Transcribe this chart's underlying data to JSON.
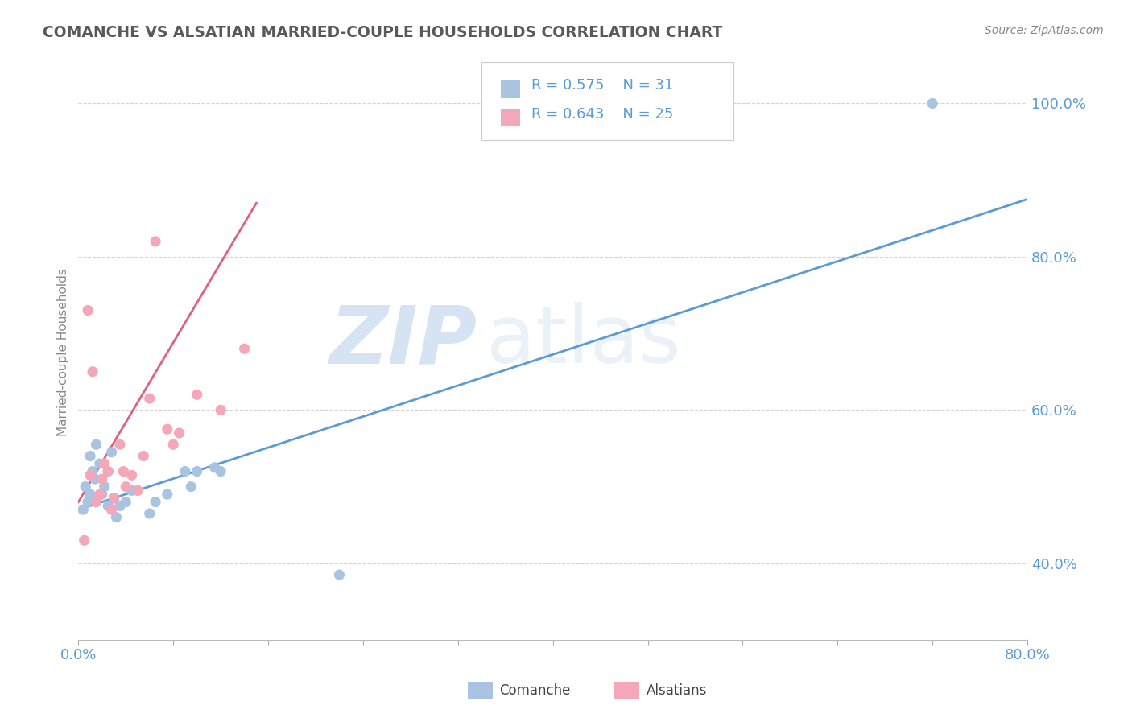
{
  "title": "COMANCHE VS ALSATIAN MARRIED-COUPLE HOUSEHOLDS CORRELATION CHART",
  "source": "Source: ZipAtlas.com",
  "ylabel_label": "Married-couple Households",
  "xlim": [
    0.0,
    0.8
  ],
  "ylim": [
    0.3,
    1.05
  ],
  "xticks": [
    0.0,
    0.08,
    0.16,
    0.24,
    0.32,
    0.4,
    0.48,
    0.56,
    0.64,
    0.72,
    0.8
  ],
  "xtick_labels": [
    "0.0%",
    "",
    "",
    "",
    "",
    "",
    "",
    "",
    "",
    "",
    "80.0%"
  ],
  "ytick_labels": [
    "40.0%",
    "60.0%",
    "80.0%",
    "100.0%"
  ],
  "yticks": [
    0.4,
    0.6,
    0.8,
    1.0
  ],
  "comanche_R": "0.575",
  "comanche_N": "31",
  "alsatian_R": "0.643",
  "alsatian_N": "25",
  "comanche_color": "#a8c4e0",
  "alsatian_color": "#f4a7b9",
  "comanche_line_color": "#5b9bd5",
  "alsatian_line_color": "#e06080",
  "legend_text_color": "#5b9bd5",
  "title_color": "#595959",
  "watermark_zip": "ZIP",
  "watermark_atlas": "atlas",
  "comanche_x": [
    0.004,
    0.006,
    0.008,
    0.01,
    0.01,
    0.012,
    0.014,
    0.015,
    0.015,
    0.018,
    0.02,
    0.022,
    0.025,
    0.025,
    0.028,
    0.03,
    0.032,
    0.035,
    0.04,
    0.045,
    0.05,
    0.06,
    0.065,
    0.075,
    0.09,
    0.095,
    0.1,
    0.115,
    0.12,
    0.22,
    0.72
  ],
  "comanche_y": [
    0.47,
    0.5,
    0.48,
    0.54,
    0.49,
    0.52,
    0.51,
    0.555,
    0.485,
    0.53,
    0.49,
    0.5,
    0.52,
    0.475,
    0.545,
    0.485,
    0.46,
    0.475,
    0.48,
    0.495,
    0.495,
    0.465,
    0.48,
    0.49,
    0.52,
    0.5,
    0.52,
    0.525,
    0.52,
    0.385,
    1.0
  ],
  "alsatian_x": [
    0.005,
    0.008,
    0.01,
    0.012,
    0.015,
    0.018,
    0.02,
    0.022,
    0.025,
    0.028,
    0.03,
    0.035,
    0.038,
    0.04,
    0.045,
    0.05,
    0.055,
    0.06,
    0.065,
    0.075,
    0.08,
    0.085,
    0.1,
    0.12,
    0.14
  ],
  "alsatian_y": [
    0.43,
    0.73,
    0.515,
    0.65,
    0.48,
    0.49,
    0.51,
    0.53,
    0.52,
    0.47,
    0.485,
    0.555,
    0.52,
    0.5,
    0.515,
    0.495,
    0.54,
    0.615,
    0.82,
    0.575,
    0.555,
    0.57,
    0.62,
    0.6,
    0.68
  ],
  "background_color": "#ffffff",
  "grid_color": "#d3d3d3",
  "comanche_line_x0": 0.0,
  "comanche_line_y0": 0.47,
  "comanche_line_x1": 0.8,
  "comanche_line_y1": 0.875,
  "alsatian_line_x0": 0.0,
  "alsatian_line_y0": 0.48,
  "alsatian_line_x1": 0.15,
  "alsatian_line_y1": 0.87
}
